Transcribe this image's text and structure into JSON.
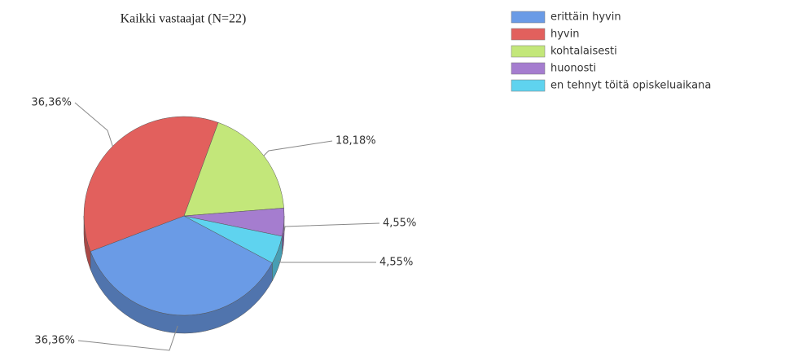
{
  "chart_data": {
    "type": "pie",
    "title": "Kaikki vastaajat (N=22)",
    "categories": [
      "erittäin hyvin",
      "hyvin",
      "kohtalaisesti",
      "huonosti",
      "en tehnyt töitä opiskeluaikana"
    ],
    "values": [
      36.36,
      36.36,
      18.18,
      4.55,
      4.55
    ],
    "value_labels": [
      "36,36%",
      "36,36%",
      "18,18%",
      "4,55%",
      "4,55%"
    ],
    "colors": [
      "#6a9be6",
      "#e2605d",
      "#c3e77a",
      "#a57dcf",
      "#5fd3ef"
    ]
  }
}
